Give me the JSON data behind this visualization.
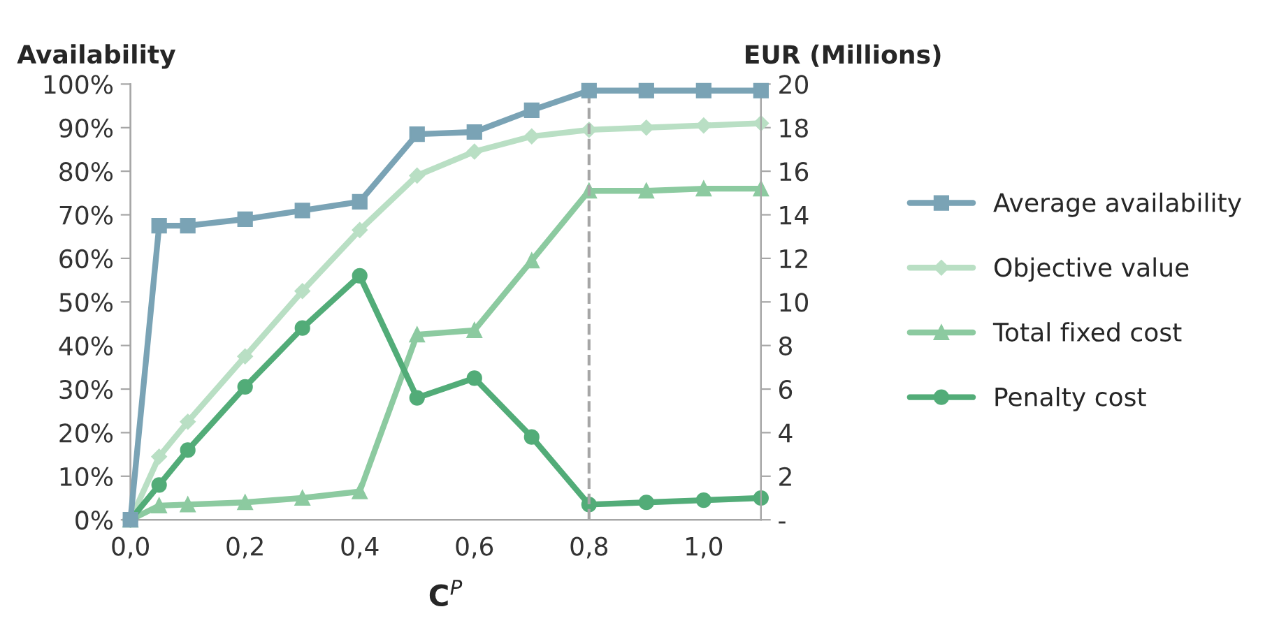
{
  "chart_data": {
    "type": "line",
    "xlabel": "C$^{P}$",
    "ylabel": "Availability",
    "y2label": "EUR (Millions)",
    "x": [
      0,
      0.05,
      0.1,
      0.2,
      0.3,
      0.4,
      0.5,
      0.6,
      0.7,
      0.8,
      0.9,
      1.0,
      1.1
    ],
    "series": [
      {
        "name": "Average availability",
        "color": "#7aa3b5",
        "marker": "square",
        "values": [
          0,
          67.5,
          67.5,
          69,
          71,
          73,
          88.5,
          89,
          94,
          98.5,
          98.5,
          98.5,
          98.5
        ]
      },
      {
        "name": "Objective value",
        "color": "#b9dfc4",
        "marker": "diamond",
        "axis": "y2",
        "values": [
          0,
          2.9,
          4.5,
          7.5,
          10.5,
          13.3,
          15.8,
          16.9,
          17.6,
          17.9,
          18.0,
          18.1,
          18.2
        ]
      },
      {
        "name": "Total fixed cost",
        "color": "#8ccaa0",
        "marker": "triangle",
        "axis": "y2",
        "values": [
          0,
          0.65,
          0.7,
          0.8,
          1.0,
          1.3,
          8.5,
          8.7,
          11.9,
          15.1,
          15.1,
          15.2,
          15.2
        ]
      },
      {
        "name": "Penalty cost",
        "color": "#52ac78",
        "marker": "circle",
        "axis": "y2",
        "values": [
          0,
          1.6,
          3.2,
          6.1,
          8.8,
          11.2,
          5.6,
          6.5,
          3.8,
          0.7,
          0.8,
          0.9,
          1.0
        ]
      }
    ],
    "xlim": [
      0,
      1.1
    ],
    "xticks": [
      {
        "value": 0,
        "label": "0,0"
      },
      {
        "value": 0.2,
        "label": "0,2"
      },
      {
        "value": 0.4,
        "label": "0,4"
      },
      {
        "value": 0.6,
        "label": "0,6"
      },
      {
        "value": 0.8,
        "label": "0,8"
      },
      {
        "value": 1.0,
        "label": "1,0"
      }
    ],
    "ylim": [
      0,
      100
    ],
    "yticks": [
      {
        "value": 0,
        "label": "0%"
      },
      {
        "value": 10,
        "label": "10%"
      },
      {
        "value": 20,
        "label": "20%"
      },
      {
        "value": 30,
        "label": "30%"
      },
      {
        "value": 40,
        "label": "40%"
      },
      {
        "value": 50,
        "label": "50%"
      },
      {
        "value": 60,
        "label": "60%"
      },
      {
        "value": 70,
        "label": "70%"
      },
      {
        "value": 80,
        "label": "80%"
      },
      {
        "value": 90,
        "label": "90%"
      },
      {
        "value": 100,
        "label": "100%"
      }
    ],
    "y2lim": [
      0,
      20
    ],
    "y2ticks": [
      {
        "value": 0,
        "label": "-"
      },
      2,
      4,
      6,
      8,
      10,
      12,
      14,
      16,
      18,
      20
    ],
    "ref_lines": [
      {
        "axis": "x",
        "value": 0.8,
        "color": "#a6a6a6",
        "line_style": "dashed"
      }
    ],
    "legend": "right",
    "grid": false,
    "line_style": "solid"
  }
}
